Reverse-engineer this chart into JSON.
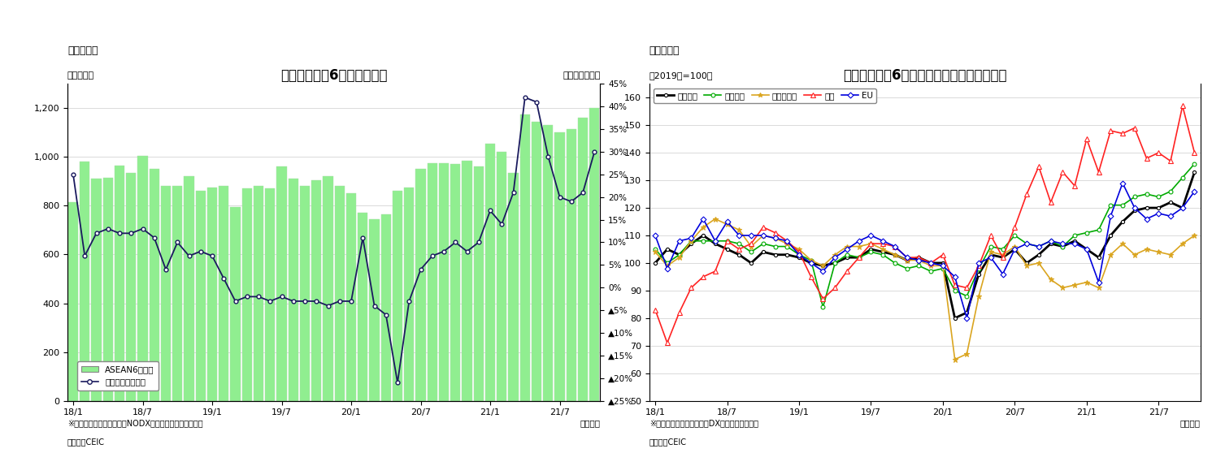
{
  "chart1": {
    "title": "アセアン主要6カ国の輸出額",
    "super_title": "（図表１）",
    "ylabel_left": "（億ドル）",
    "ylabel_right": "（前年同月比）",
    "footnote1": "※シンガポールの輸出額はNODX（石油と再輸出除く）。",
    "footnote2": "（資料）CEIC",
    "xlabel": "（年月）",
    "ylim_left": [
      0,
      1300
    ],
    "ylim_right": [
      -0.25,
      0.45
    ],
    "yticks_left": [
      0,
      200,
      400,
      600,
      800,
      1000,
      1200
    ],
    "yticks_right_labels": [
      "▲5%",
      "▲10%",
      "▲15%",
      "▲20%",
      "▲25%"
    ],
    "yticks_right_vals_pos": [
      0.05,
      0.1,
      0.15,
      0.2,
      0.25,
      0.3,
      0.35,
      0.4,
      0.45
    ],
    "yticks_right_labels_pos": [
      "5%",
      "10%",
      "15%",
      "20%",
      "25%",
      "30%",
      "35%",
      "40%",
      "45%"
    ],
    "yticks_right_vals_neg": [
      -0.05,
      -0.1,
      -0.15,
      -0.2,
      -0.25
    ],
    "yticks_right_zero": 0.0,
    "bar_color": "#90EE90",
    "bar_edge_color": "#90EE90",
    "line_color": "#1a1a5e",
    "line_marker": "o",
    "legend_bar": "ASEAN6カ国計",
    "legend_line": "増加率（右目盛）",
    "xtick_labels": [
      "18/1",
      "18/7",
      "19/1",
      "19/7",
      "20/1",
      "20/7",
      "21/1",
      "21/7"
    ],
    "bar_values": [
      815,
      980,
      910,
      915,
      965,
      935,
      1005,
      950,
      880,
      880,
      920,
      860,
      875,
      880,
      795,
      870,
      880,
      870,
      960,
      910,
      880,
      905,
      920,
      880,
      850,
      770,
      745,
      765,
      860,
      875,
      950,
      975,
      975,
      970,
      985,
      960,
      1055,
      1020,
      935,
      1175,
      1145,
      1130,
      1100,
      1115,
      1160,
      1200
    ],
    "line_values": [
      0.25,
      0.07,
      0.12,
      0.13,
      0.12,
      0.12,
      0.13,
      0.11,
      0.04,
      0.1,
      0.07,
      0.08,
      0.07,
      0.02,
      -0.03,
      -0.02,
      -0.02,
      -0.03,
      -0.02,
      -0.03,
      -0.03,
      -0.03,
      -0.04,
      -0.03,
      -0.03,
      0.11,
      -0.04,
      -0.06,
      -0.21,
      -0.03,
      0.04,
      0.07,
      0.08,
      0.1,
      0.08,
      0.1,
      0.17,
      0.14,
      0.21,
      0.42,
      0.41,
      0.29,
      0.2,
      0.19,
      0.21,
      0.3
    ]
  },
  "chart2": {
    "title": "アセアン主要6カ国　仕向け地別の輸出動向",
    "super_title": "（図表２）",
    "ylabel_left": "（2019年=100）",
    "footnote1": "※シンガポールの輸出額はDX（再輸出除く）。",
    "footnote2": "（資料）CEIC",
    "xlabel": "（年月）",
    "ylim": [
      50,
      165
    ],
    "yticks": [
      50,
      60,
      70,
      80,
      90,
      100,
      110,
      120,
      130,
      140,
      150,
      160
    ],
    "xtick_labels": [
      "18/1",
      "18/7",
      "19/1",
      "19/7",
      "20/1",
      "20/7",
      "21/1",
      "21/7"
    ],
    "legend_entries": [
      "輸出全体",
      "東アジア",
      "東南アジア",
      "北米",
      "EU"
    ],
    "series_colors": [
      "#000000",
      "#00AA00",
      "#DAA520",
      "#FF2222",
      "#0000DD"
    ],
    "series_markers": [
      "o",
      "o",
      "*",
      "^",
      "D"
    ],
    "series_lw": [
      2.0,
      1.2,
      1.2,
      1.2,
      1.2
    ],
    "series_ms": [
      3.0,
      3.5,
      5.0,
      4.0,
      3.5
    ],
    "total_export": [
      100,
      105,
      103,
      107,
      110,
      107,
      105,
      103,
      100,
      104,
      103,
      103,
      102,
      100,
      99,
      100,
      102,
      102,
      105,
      104,
      103,
      101,
      102,
      100,
      100,
      80,
      82,
      96,
      103,
      102,
      105,
      100,
      103,
      107,
      106,
      108,
      105,
      102,
      110,
      115,
      119,
      120,
      120,
      122,
      120,
      133
    ],
    "east_asia": [
      105,
      100,
      103,
      108,
      108,
      108,
      108,
      107,
      104,
      107,
      106,
      106,
      103,
      101,
      84,
      100,
      103,
      102,
      104,
      103,
      100,
      98,
      99,
      97,
      98,
      90,
      88,
      98,
      106,
      105,
      110,
      107,
      106,
      108,
      106,
      110,
      111,
      112,
      121,
      121,
      124,
      125,
      124,
      126,
      131,
      136
    ],
    "southeast_asia": [
      104,
      99,
      102,
      108,
      113,
      116,
      114,
      112,
      106,
      110,
      109,
      107,
      105,
      101,
      99,
      103,
      106,
      106,
      107,
      105,
      103,
      101,
      101,
      99,
      99,
      65,
      67,
      88,
      104,
      103,
      106,
      99,
      100,
      94,
      91,
      92,
      93,
      91,
      103,
      107,
      103,
      105,
      104,
      103,
      107,
      110
    ],
    "north_america": [
      83,
      71,
      82,
      91,
      95,
      97,
      108,
      105,
      107,
      113,
      111,
      108,
      104,
      95,
      87,
      91,
      97,
      102,
      107,
      107,
      106,
      102,
      102,
      100,
      103,
      92,
      91,
      99,
      110,
      102,
      113,
      125,
      135,
      122,
      133,
      128,
      145,
      133,
      148,
      147,
      149,
      138,
      140,
      137,
      157,
      140
    ],
    "eu": [
      110,
      98,
      108,
      109,
      116,
      108,
      115,
      110,
      110,
      110,
      109,
      108,
      103,
      100,
      97,
      102,
      105,
      108,
      110,
      108,
      106,
      102,
      101,
      100,
      99,
      95,
      80,
      100,
      102,
      96,
      105,
      107,
      106,
      108,
      107,
      107,
      105,
      93,
      117,
      129,
      120,
      116,
      118,
      117,
      120,
      126
    ]
  }
}
